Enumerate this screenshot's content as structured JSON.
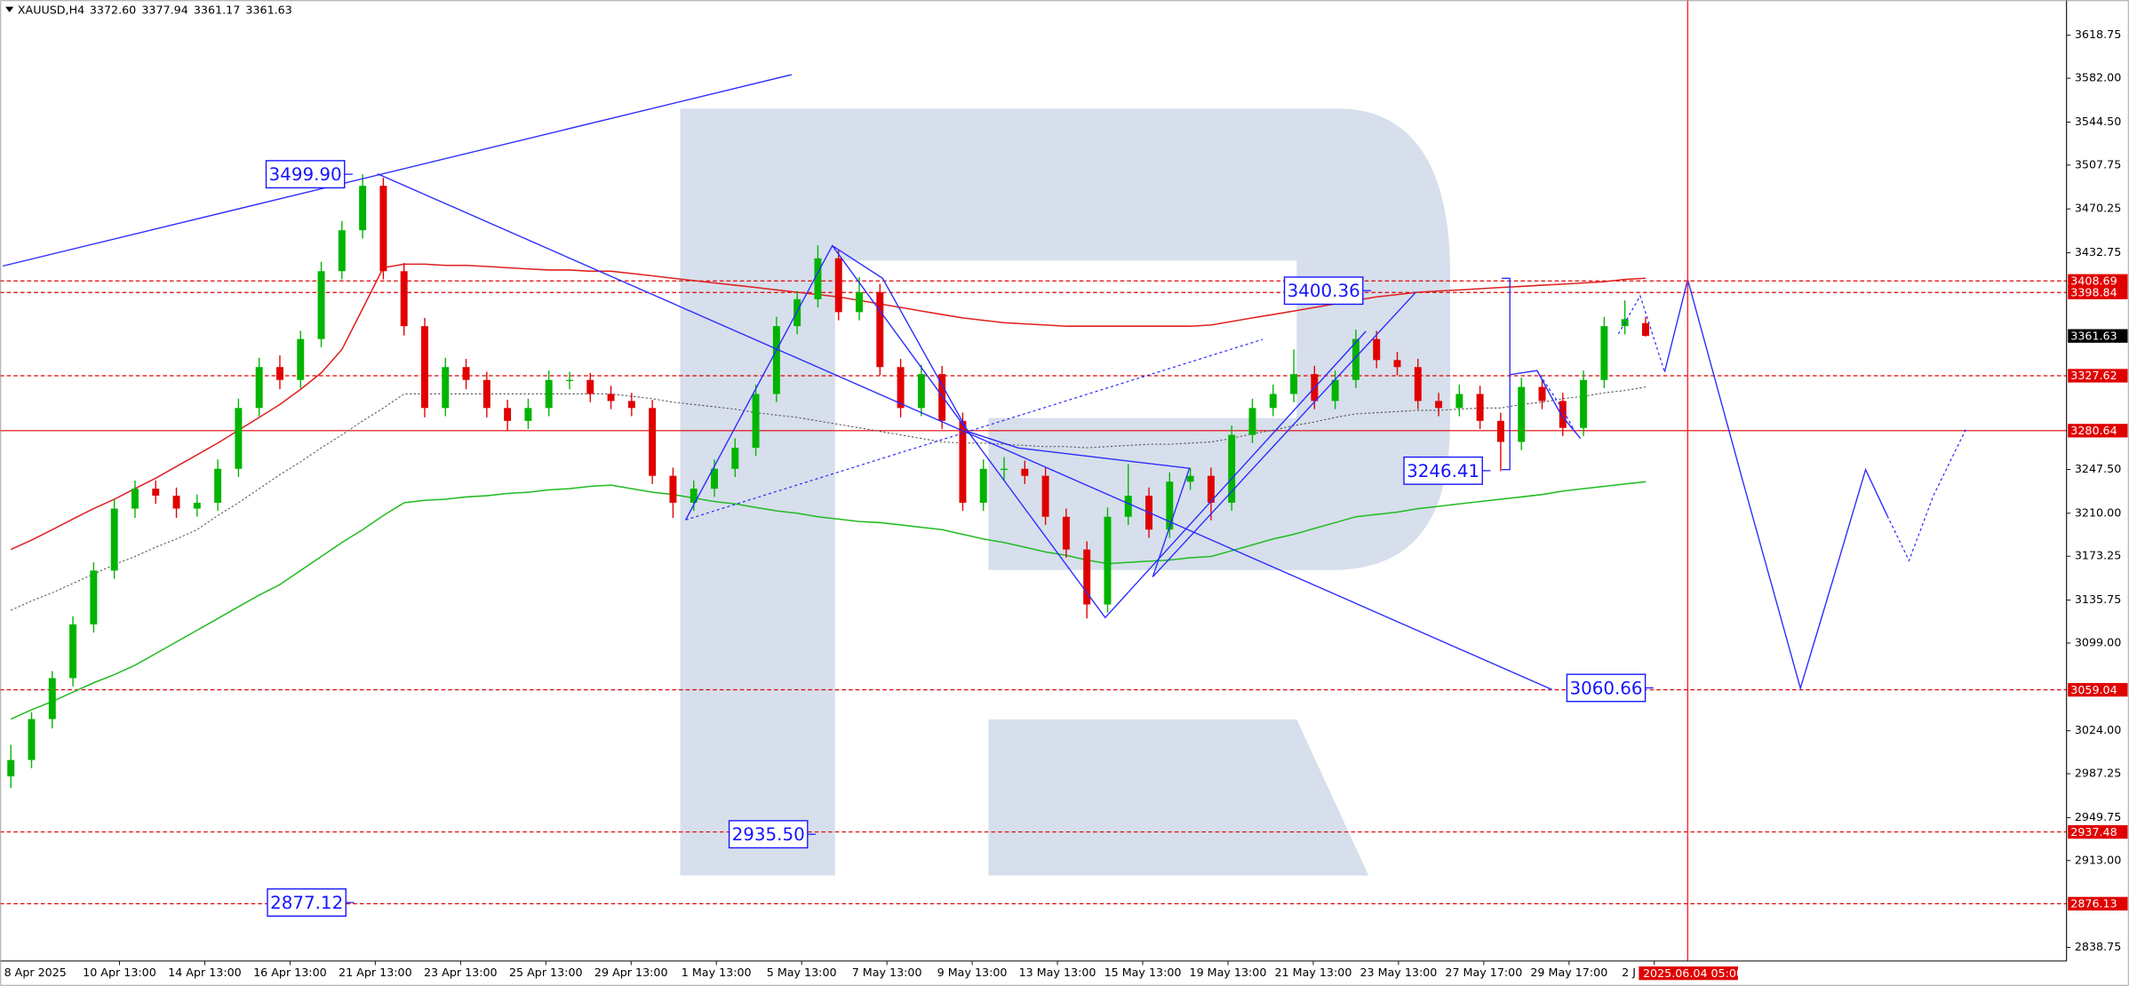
{
  "chart_data": {
    "type": "candlestick",
    "symbol": "XAUUSD,H4",
    "ohlc_labels": [
      "3372.60",
      "3377.94",
      "3361.17",
      "3361.63"
    ],
    "up_color": "#00b400",
    "down_color": "#e00000",
    "candles": [
      [
        2985,
        3012,
        2975,
        2999
      ],
      [
        2999,
        3040,
        2992,
        3034
      ],
      [
        3034,
        3075,
        3026,
        3069
      ],
      [
        3069,
        3122,
        3062,
        3115
      ],
      [
        3115,
        3168,
        3108,
        3161
      ],
      [
        3161,
        3222,
        3154,
        3214
      ],
      [
        3214,
        3238,
        3206,
        3231
      ],
      [
        3231,
        3238,
        3218,
        3225
      ],
      [
        3225,
        3232,
        3206,
        3214
      ],
      [
        3214,
        3226,
        3207,
        3219
      ],
      [
        3219,
        3256,
        3212,
        3248
      ],
      [
        3248,
        3308,
        3241,
        3300
      ],
      [
        3300,
        3343,
        3293,
        3335
      ],
      [
        3335,
        3345,
        3316,
        3324
      ],
      [
        3324,
        3366,
        3317,
        3359
      ],
      [
        3359,
        3425,
        3352,
        3417
      ],
      [
        3417,
        3460,
        3410,
        3452
      ],
      [
        3452,
        3499.9,
        3445,
        3490
      ],
      [
        3490,
        3497,
        3410,
        3417
      ],
      [
        3417,
        3424,
        3362,
        3370
      ],
      [
        3370,
        3377,
        3292,
        3300
      ],
      [
        3300,
        3343,
        3293,
        3335
      ],
      [
        3335,
        3342,
        3316,
        3324
      ],
      [
        3324,
        3331,
        3292,
        3300
      ],
      [
        3300,
        3307,
        3281,
        3289
      ],
      [
        3289,
        3308,
        3282,
        3300
      ],
      [
        3300,
        3332,
        3293,
        3324
      ],
      [
        3324,
        3331,
        3316,
        3324
      ],
      [
        3324,
        3330,
        3305,
        3312
      ],
      [
        3312,
        3319,
        3299,
        3306
      ],
      [
        3306,
        3313,
        3293,
        3300
      ],
      [
        3300,
        3307,
        3235,
        3242
      ],
      [
        3242,
        3249,
        3206,
        3219
      ],
      [
        3219,
        3238,
        3212,
        3231
      ],
      [
        3231,
        3256,
        3224,
        3248
      ],
      [
        3248,
        3274,
        3241,
        3266
      ],
      [
        3266,
        3320,
        3259,
        3312
      ],
      [
        3312,
        3378,
        3305,
        3370
      ],
      [
        3370,
        3400,
        3363,
        3393
      ],
      [
        3393,
        3439,
        3386,
        3428
      ],
      [
        3428,
        3435,
        3375,
        3382
      ],
      [
        3382,
        3412,
        3375,
        3399
      ],
      [
        3399,
        3406,
        3328,
        3335
      ],
      [
        3335,
        3342,
        3292,
        3300
      ],
      [
        3300,
        3337,
        3293,
        3329
      ],
      [
        3329,
        3336,
        3282,
        3289
      ],
      [
        3289,
        3296,
        3212,
        3219
      ],
      [
        3219,
        3256,
        3212,
        3248
      ],
      [
        3248,
        3258,
        3238,
        3248
      ],
      [
        3248,
        3255,
        3235,
        3242
      ],
      [
        3242,
        3249,
        3200,
        3207
      ],
      [
        3207,
        3214,
        3172,
        3179
      ],
      [
        3179,
        3186,
        3120,
        3132
      ],
      [
        3132,
        3215,
        3125,
        3207
      ],
      [
        3207,
        3252,
        3200,
        3225
      ],
      [
        3225,
        3232,
        3189,
        3196
      ],
      [
        3196,
        3245,
        3189,
        3237
      ],
      [
        3237,
        3249,
        3230,
        3242
      ],
      [
        3242,
        3249,
        3204,
        3219
      ],
      [
        3219,
        3285,
        3212,
        3277
      ],
      [
        3277,
        3308,
        3270,
        3300
      ],
      [
        3300,
        3320,
        3293,
        3312
      ],
      [
        3312,
        3350,
        3305,
        3329
      ],
      [
        3329,
        3336,
        3299,
        3306
      ],
      [
        3306,
        3332,
        3299,
        3324
      ],
      [
        3324,
        3367,
        3317,
        3359
      ],
      [
        3359,
        3366,
        3334,
        3341
      ],
      [
        3341,
        3348,
        3328,
        3335
      ],
      [
        3335,
        3342,
        3299,
        3306
      ],
      [
        3306,
        3313,
        3293,
        3300
      ],
      [
        3300,
        3320,
        3293,
        3312
      ],
      [
        3312,
        3319,
        3282,
        3289
      ],
      [
        3289,
        3296,
        3246,
        3271
      ],
      [
        3271,
        3326,
        3264,
        3318
      ],
      [
        3318,
        3325,
        3299,
        3306
      ],
      [
        3306,
        3313,
        3276,
        3283
      ],
      [
        3283,
        3332,
        3276,
        3324
      ],
      [
        3324,
        3378,
        3317,
        3370
      ],
      [
        3370,
        3392,
        3363,
        3376
      ],
      [
        3372.6,
        3377.94,
        3361.17,
        3361.63
      ]
    ],
    "moving_averages": [
      {
        "color": "#e02020",
        "style": "solid",
        "values": [
          3179,
          3187,
          3196,
          3205,
          3214,
          3222,
          3231,
          3240,
          3250,
          3260,
          3270,
          3281,
          3292,
          3303,
          3316,
          3330,
          3350,
          3385,
          3420,
          3423,
          3423,
          3422,
          3422,
          3421,
          3420,
          3419,
          3418,
          3418,
          3417,
          3417,
          3415,
          3413,
          3411,
          3409,
          3407,
          3405,
          3403,
          3401,
          3399,
          3397,
          3395,
          3392,
          3389,
          3386,
          3383,
          3380,
          3377,
          3375,
          3373,
          3372,
          3371,
          3370,
          3370,
          3370,
          3370,
          3370,
          3370,
          3370,
          3371,
          3374,
          3377,
          3380,
          3383,
          3386,
          3389,
          3392,
          3395,
          3397,
          3399,
          3400,
          3401,
          3402,
          3403,
          3404,
          3405,
          3406,
          3407,
          3408,
          3410,
          3411
        ]
      },
      {
        "color": "#22bb22",
        "style": "solid",
        "values": [
          3034,
          3042,
          3049,
          3057,
          3065,
          3072,
          3080,
          3090,
          3100,
          3110,
          3120,
          3130,
          3140,
          3149,
          3161,
          3173,
          3185,
          3196,
          3208,
          3219,
          3221,
          3222,
          3224,
          3225,
          3227,
          3228,
          3230,
          3231,
          3233,
          3234,
          3231,
          3228,
          3226,
          3223,
          3220,
          3218,
          3215,
          3212,
          3210,
          3207,
          3205,
          3203,
          3202,
          3200,
          3198,
          3196,
          3192,
          3188,
          3185,
          3181,
          3177,
          3174,
          3170,
          3167,
          3168,
          3169,
          3170,
          3172,
          3173,
          3178,
          3183,
          3188,
          3192,
          3197,
          3202,
          3207,
          3209,
          3211,
          3214,
          3216,
          3218,
          3220,
          3222,
          3224,
          3226,
          3229,
          3231,
          3233,
          3235,
          3237
        ]
      },
      {
        "color": "#555555",
        "style": "dotted",
        "values": [
          3127,
          3135,
          3142,
          3150,
          3158,
          3166,
          3173,
          3181,
          3188,
          3196,
          3208,
          3219,
          3231,
          3243,
          3254,
          3266,
          3277,
          3289,
          3300,
          3312,
          3312,
          3312,
          3312,
          3312,
          3312,
          3312,
          3312,
          3312,
          3312,
          3312,
          3310,
          3308,
          3305,
          3303,
          3301,
          3299,
          3296,
          3294,
          3292,
          3289,
          3286,
          3283,
          3280,
          3277,
          3274,
          3271,
          3270,
          3270,
          3269,
          3268,
          3267,
          3267,
          3266,
          3267,
          3268,
          3269,
          3269,
          3270,
          3271,
          3274,
          3278,
          3281,
          3285,
          3288,
          3292,
          3295,
          3296,
          3297,
          3298,
          3298,
          3299,
          3300,
          3300,
          3303,
          3305,
          3308,
          3310,
          3313,
          3315,
          3318
        ]
      }
    ],
    "ylim": [
      2827.1,
      3648.9
    ],
    "yticks": [
      {
        "value": 3618.75,
        "label": "3618.75"
      },
      {
        "value": 3582.0,
        "label": "3582.00"
      },
      {
        "value": 3544.5,
        "label": "3544.50"
      },
      {
        "value": 3507.75,
        "label": "3507.75"
      },
      {
        "value": 3470.25,
        "label": "3470.25"
      },
      {
        "value": 3432.75,
        "label": "3432.75"
      },
      {
        "value": 3247.5,
        "label": "3247.50"
      },
      {
        "value": 3210.0,
        "label": "3210.00"
      },
      {
        "value": 3173.25,
        "label": "3173.25"
      },
      {
        "value": 3135.75,
        "label": "3135.75"
      },
      {
        "value": 3099.0,
        "label": "3099.00"
      },
      {
        "value": 3024.0,
        "label": "3024.00"
      },
      {
        "value": 2987.25,
        "label": "2987.25"
      },
      {
        "value": 2949.75,
        "label": "2949.75"
      },
      {
        "value": 2913.0,
        "label": "2913.00"
      },
      {
        "value": 2838.75,
        "label": "2838.75"
      }
    ],
    "x_labels": [
      "8 Apr 2025",
      "10 Apr 13:00",
      "14 Apr 13:00",
      "16 Apr 13:00",
      "21 Apr 13:00",
      "23 Apr 13:00",
      "25 Apr 13:00",
      "29 Apr 13:00",
      "1 May 13:00",
      "5 May 13:00",
      "7 May 13:00",
      "9 May 13:00",
      "13 May 13:00",
      "15 May 13:00",
      "19 May 13:00",
      "21 May 13:00",
      "23 May 13:00",
      "27 May 17:00",
      "29 May 17:00",
      "2 J"
    ],
    "levels": [
      {
        "value": 3408.69,
        "color": "#e00000",
        "style": "dashed"
      },
      {
        "value": 3398.84,
        "color": "#e00000",
        "style": "dashed"
      },
      {
        "value": 3327.62,
        "color": "#e00000",
        "style": "dashed"
      },
      {
        "value": 3280.64,
        "color": "#e00000",
        "style": "solid"
      },
      {
        "value": 3059.04,
        "color": "#e00000",
        "style": "dashed"
      },
      {
        "value": 2937.48,
        "color": "#e00000",
        "style": "dashed"
      },
      {
        "value": 2876.13,
        "color": "#e00000",
        "style": "dashed"
      }
    ],
    "annotations": [
      {
        "value": 3499.9,
        "label": "3499.90"
      },
      {
        "value": 3400.36,
        "label": "3400.36"
      },
      {
        "value": 3246.41,
        "label": "3246.41"
      },
      {
        "value": 3060.66,
        "label": "3060.66"
      },
      {
        "value": 2935.5,
        "label": "2935.50"
      },
      {
        "value": 2877.12,
        "label": "2877.12"
      }
    ],
    "cursor_time": "2025.06.04 05:00",
    "grid": false
  }
}
